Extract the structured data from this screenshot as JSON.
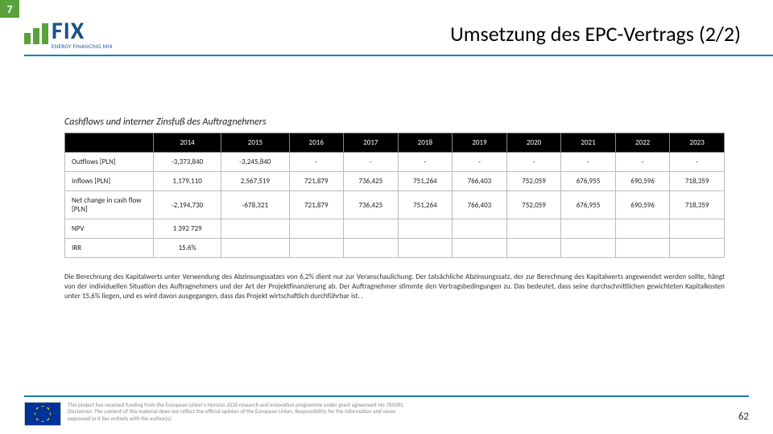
{
  "page_marker": "7",
  "logo": {
    "brand": "FIX",
    "tagline": "ENERGY FINANCING MIX"
  },
  "title": "Umsetzung des EPC-Vertrags (2/2)",
  "subtitle": "Cashflows und interner Zinsfuß des Auftragnehmers",
  "table": {
    "years": [
      "2014",
      "2015",
      "2016",
      "2017",
      "2018",
      "2019",
      "2020",
      "2021",
      "2022",
      "2023"
    ],
    "rows": [
      {
        "label": "Outflows [PLN]",
        "cells": [
          "-3,373,840",
          "-3,245,840",
          "-",
          "-",
          "-",
          "-",
          "-",
          "-",
          "-",
          "-"
        ]
      },
      {
        "label": "Inflows [PLN]",
        "cells": [
          "1,179,110",
          "2,567,519",
          "721,879",
          "736,425",
          "751,264",
          "766,403",
          "752,059",
          "676,955",
          "690,596",
          "718,359"
        ]
      },
      {
        "label": "Net change in cash flow [PLN]",
        "cells": [
          "-2,194,730",
          "-678,321",
          "721,879",
          "736,425",
          "751,264",
          "766,403",
          "752,059",
          "676,955",
          "690,596",
          "718,359"
        ]
      },
      {
        "label": "NPV",
        "cells": [
          "1 392 729",
          "",
          "",
          "",
          "",
          "",
          "",
          "",
          "",
          ""
        ]
      },
      {
        "label": "IRR",
        "cells": [
          "15.6%",
          "",
          "",
          "",
          "",
          "",
          "",
          "",
          "",
          ""
        ]
      }
    ]
  },
  "note": "Die Berechnung des Kapitalwerts unter Verwendung des Abzinsungssatzes von 6,2% dient nur zur Veranschaulichung. Der tatsächliche Abzinsungssatz, der zur Berechnung des Kapitalwerts angewendet werden sollte, hängt von der individuellen Situation des Auftragnehmers und der Art der Projektfinanzierung ab. Der Auftragnehmer stimmte den Vertragsbedingungen zu. Das bedeutet, dass seine durchschnittlichen gewichteten Kapitalkosten unter 15,6% liegen, und es wird davon ausgegangen, dass das Projekt wirtschaftlich durchführbar ist. .",
  "footer": {
    "eu_text": "This project has received funding from the European Union's Horizon 2020 research and innovation programme under grant agreement No 785081. Disclaimer: The content of this material does not reflect the official opinion of the European Union. Responsibility for the information and views expressed in it lies entirely with the author(s).",
    "slide_number": "62"
  }
}
